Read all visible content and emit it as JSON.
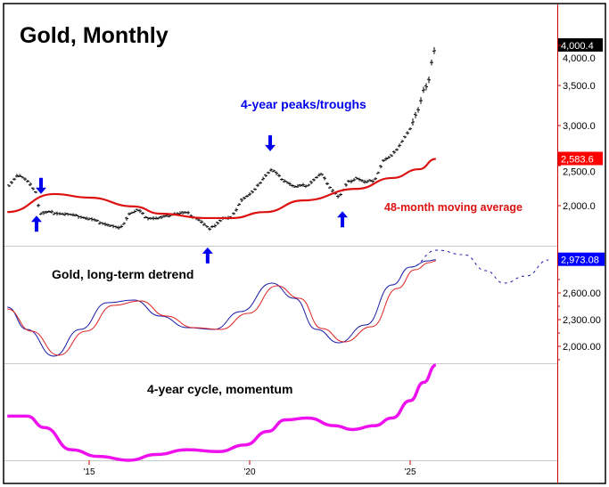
{
  "chart_data": [
    {
      "type": "bar",
      "title": "Gold, Monthly",
      "bar_style": "OHLC monthly bars",
      "annotation": "4-year peaks/troughs",
      "yticks": [
        "2,000.0",
        "2,500.0",
        "3,000.0",
        "3,500.0",
        "4,000.0"
      ],
      "ylim": [
        1500,
        4490
      ],
      "last_value_label": "4,000.4",
      "price": {
        "x": [
          2012.5,
          2012.78,
          2013.06,
          2013.33,
          2013.47,
          2013.75,
          2014.17,
          2014.72,
          2015.14,
          2015.56,
          2015.97,
          2016.25,
          2016.53,
          2016.81,
          2017.22,
          2017.64,
          2018.06,
          2018.47,
          2018.75,
          2019.17,
          2019.44,
          2019.72,
          2020.14,
          2020.42,
          2020.69,
          2020.97,
          2021.39,
          2021.81,
          2022.22,
          2022.5,
          2022.78,
          2023.06,
          2023.33,
          2023.61,
          2023.89,
          2024.17,
          2024.44,
          2024.72,
          2025.0,
          2025.28,
          2025.42,
          2025.56,
          2025.69,
          2025.8
        ],
        "y": [
          2255,
          2390,
          2310,
          2180,
          1900,
          1920,
          1900,
          1865,
          1820,
          1765,
          1710,
          1900,
          1945,
          1845,
          1845,
          1900,
          1910,
          1810,
          1700,
          1845,
          1845,
          2065,
          2180,
          2345,
          2455,
          2345,
          2235,
          2255,
          2400,
          2235,
          2100,
          2290,
          2345,
          2290,
          2320,
          2565,
          2620,
          2790,
          2955,
          3235,
          3455,
          3510,
          3845,
          4000
        ]
      },
      "moving_average": {
        "name": "48-month moving average",
        "color": "#dd1111",
        "last_value_label": "2,583.6",
        "x": [
          2012.45,
          2013.9,
          2015.0,
          2016.39,
          2017.22,
          2018.61,
          2019.44,
          2020.47,
          2021.67,
          2023.33,
          2024.44,
          2025.28,
          2025.8
        ],
        "y": [
          1920,
          2145,
          2100,
          1990,
          1900,
          1845,
          1845,
          1920,
          2065,
          2210,
          2345,
          2455,
          2583.6
        ]
      },
      "arrows": [
        {
          "dir": "down",
          "x": 2013.5,
          "kind": "peak"
        },
        {
          "dir": "up",
          "x": 2013.36,
          "kind": "trough"
        },
        {
          "dir": "up",
          "x": 2018.69,
          "kind": "trough"
        },
        {
          "dir": "down",
          "x": 2020.64,
          "kind": "peak"
        },
        {
          "dir": "up",
          "x": 2022.89,
          "kind": "trough"
        }
      ],
      "arrow_color": "#0000ee"
    },
    {
      "type": "line",
      "title": "Gold, long-term detrend",
      "yticks": [
        "2,000.00",
        "2,300.00",
        "2,600.00"
      ],
      "last_value_label": "2,973.08",
      "series": [
        {
          "color": "#1a1aa8",
          "x": [
            2012.45,
            2013.06,
            2013.9,
            2014.72,
            2015.56,
            2016.39,
            2017.22,
            2018.06,
            2018.89,
            2019.72,
            2020.69,
            2021.39,
            2022.08,
            2022.78,
            2023.61,
            2024.44,
            2025.0,
            2025.56,
            2025.8
          ],
          "y": [
            2440,
            2190,
            1890,
            2190,
            2490,
            2520,
            2340,
            2210,
            2190,
            2390,
            2710,
            2540,
            2190,
            2040,
            2240,
            2690,
            2890,
            2960,
            2973
          ]
        },
        {
          "color": "#dd2222",
          "x": [
            2012.45,
            2013.2,
            2014.05,
            2014.9,
            2015.75,
            2016.6,
            2017.4,
            2018.25,
            2019.1,
            2019.95,
            2020.85,
            2021.55,
            2022.25,
            2022.95,
            2023.8,
            2024.6,
            2025.15,
            2025.6,
            2025.8
          ],
          "y": [
            2420,
            2170,
            1900,
            2170,
            2460,
            2510,
            2340,
            2210,
            2190,
            2370,
            2680,
            2540,
            2200,
            2050,
            2220,
            2650,
            2860,
            2940,
            2960
          ]
        },
        {
          "color": "#1a1aa8",
          "style": "dashed forecast",
          "x": [
            2025.0,
            2025.83,
            2026.67,
            2027.36,
            2027.92,
            2028.61,
            2029.31
          ],
          "y": [
            2890,
            3080,
            3030,
            2850,
            2710,
            2790,
            2970
          ]
        }
      ],
      "ylim": [
        1810,
        3130
      ]
    },
    {
      "type": "line",
      "title": "4-year cycle, momentum",
      "color": "#ee11ee",
      "x": [
        2012.45,
        2013.06,
        2013.61,
        2014.44,
        2015.28,
        2016.25,
        2017.08,
        2018.06,
        2019.03,
        2019.86,
        2020.56,
        2021.11,
        2021.81,
        2022.64,
        2023.2,
        2023.89,
        2024.44,
        2025.0,
        2025.42,
        2025.8
      ],
      "y": [
        46,
        46,
        34,
        11,
        4,
        0,
        6,
        11,
        9,
        16,
        30,
        42,
        44,
        36,
        32,
        36,
        44,
        62,
        81,
        99
      ],
      "ylim": [
        0,
        100
      ]
    }
  ],
  "xaxis": {
    "ticks": [
      {
        "value": 2015,
        "label": "'15"
      },
      {
        "value": 2020,
        "label": "'20"
      },
      {
        "value": 2025,
        "label": "'25"
      }
    ],
    "xlim": [
      2012.44,
      2029.6
    ]
  }
}
